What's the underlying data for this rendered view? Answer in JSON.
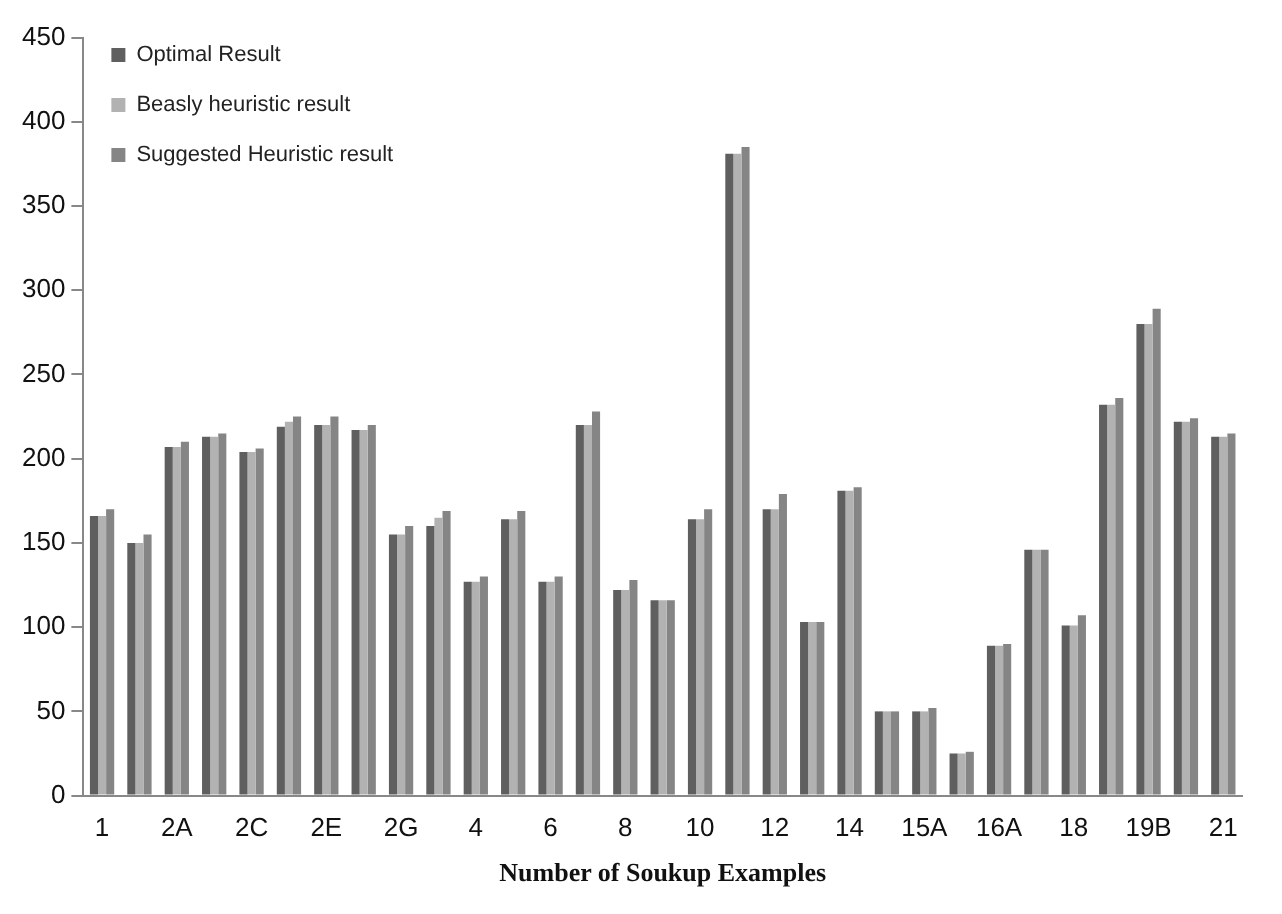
{
  "chart_data": {
    "type": "bar",
    "xlabel": "Number of Soukup Examples",
    "categories": [
      "1",
      null,
      "2A",
      null,
      "2C",
      null,
      "2E",
      null,
      "2G",
      null,
      "4",
      null,
      "6",
      null,
      "8",
      null,
      "10",
      null,
      "12",
      null,
      "14",
      null,
      "15A",
      null,
      "16A",
      null,
      "18",
      null,
      "19B",
      null,
      "21"
    ],
    "series": [
      {
        "name": "Optimal Result",
        "color": "#5f5f5f",
        "values": [
          166,
          150,
          207,
          213,
          204,
          219,
          220,
          217,
          155,
          160,
          127,
          164,
          127,
          220,
          122,
          116,
          164,
          381,
          170,
          103,
          181,
          50,
          50,
          25,
          89,
          146,
          101,
          232,
          280,
          222,
          213
        ]
      },
      {
        "name": "Beasly heuristic result",
        "color": "#b2b2b2",
        "values": [
          166,
          150,
          207,
          213,
          204,
          222,
          220,
          217,
          155,
          165,
          127,
          164,
          127,
          220,
          122,
          116,
          164,
          381,
          170,
          103,
          181,
          50,
          50,
          25,
          89,
          146,
          101,
          232,
          280,
          222,
          213
        ]
      },
      {
        "name": "Suggested Heuristic result",
        "color": "#858585",
        "values": [
          170,
          155,
          210,
          215,
          206,
          225,
          225,
          220,
          160,
          169,
          130,
          169,
          130,
          228,
          128,
          116,
          170,
          385,
          179,
          103,
          183,
          50,
          52,
          26,
          90,
          146,
          107,
          236,
          289,
          224,
          215
        ]
      }
    ],
    "ylim": [
      0,
      450
    ],
    "yticks": [
      0,
      50,
      100,
      150,
      200,
      250,
      300,
      350,
      400,
      450
    ],
    "grid": false,
    "legend": "top left"
  }
}
